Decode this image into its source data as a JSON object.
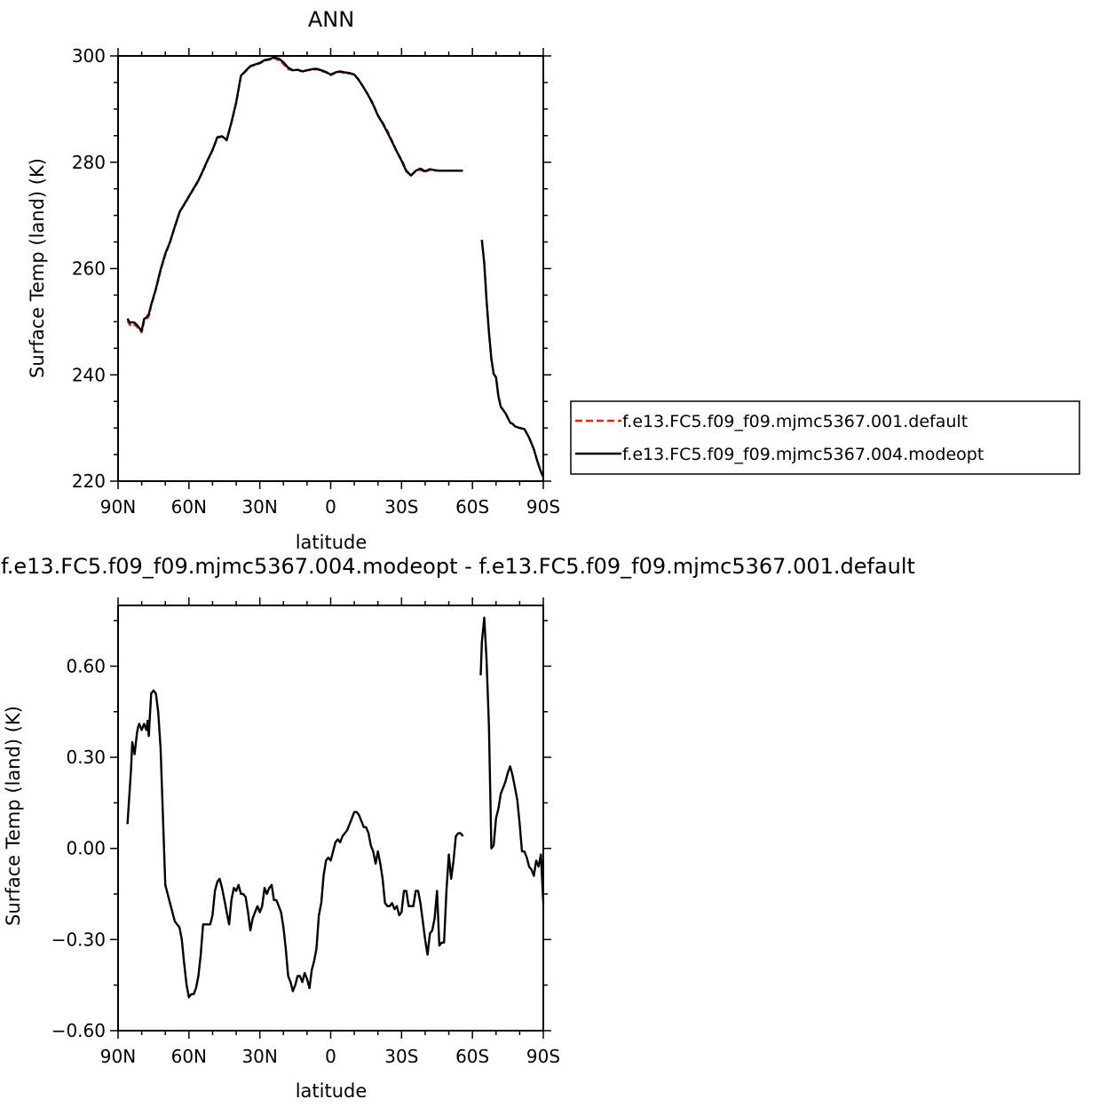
{
  "chart_data": [
    {
      "type": "line",
      "title": "ANN",
      "xlabel": "latitude",
      "ylabel": "Surface Temp (land) (K)",
      "xlim": [
        90,
        -90
      ],
      "ylim": [
        220,
        300
      ],
      "x_ticks": [
        90,
        60,
        30,
        0,
        -30,
        -60,
        -90
      ],
      "x_tick_labels": [
        "90N",
        "60N",
        "30N",
        "0",
        "30S",
        "60S",
        "90S"
      ],
      "y_ticks": [
        220,
        240,
        260,
        280,
        300
      ],
      "y_tick_labels": [
        "220",
        "240",
        "260",
        "280",
        "300"
      ],
      "grid": false,
      "legend": {
        "placement": "right",
        "entries": [
          {
            "name": "f.e13.FC5.f09_f09.mjmc5367.001.default",
            "color": "#e8221c",
            "dash": "dashed"
          },
          {
            "name": "f.e13.FC5.f09_f09.mjmc5367.004.modeopt",
            "color": "#000000",
            "dash": "solid"
          }
        ]
      },
      "series": [
        {
          "name": "f.e13.FC5.f09_f09.mjmc5367.001.default",
          "color": "#e8221c",
          "dash": "dashed",
          "segments": [
            {
              "x": [
                86,
                85,
                84,
                83,
                82,
                81,
                80,
                79,
                78,
                77,
                76,
                74,
                72,
                70,
                68,
                66,
                64,
                62,
                60,
                58,
                56,
                54,
                52,
                50,
                48,
                46,
                44,
                42,
                40,
                38,
                36,
                34,
                32,
                30,
                28,
                26,
                24,
                22,
                20,
                18,
                16,
                14,
                12,
                10,
                8,
                6,
                4,
                2,
                0,
                -2,
                -4,
                -6,
                -8,
                -10,
                -12,
                -14,
                -16,
                -18,
                -20,
                -22,
                -24,
                -26,
                -28,
                -30,
                -32,
                -34,
                -36,
                -38,
                -40,
                -42,
                -44,
                -46,
                -48,
                -50,
                -52,
                -54,
                -56
              ],
              "y": [
                250.2,
                249.4,
                249.2,
                249.4,
                249.1,
                248.5,
                248.0,
                250.1,
                250.4,
                251.0,
                253.0,
                256.0,
                259.6,
                262.6,
                264.9,
                267.8,
                270.5,
                272.0,
                273.5,
                275.0,
                276.5,
                278.4,
                280.4,
                282.2,
                284.6,
                284.8,
                284.1,
                287.4,
                291.2,
                296.2,
                297.1,
                298.0,
                298.3,
                298.6,
                299.1,
                299.3,
                299.6,
                299.2,
                298.5,
                297.5,
                297.3,
                297.4,
                297.1,
                297.3,
                297.4,
                297.5,
                297.2,
                296.9,
                296.4,
                296.8,
                297.0,
                296.8,
                296.7,
                296.5,
                295.5,
                294.0,
                292.6,
                291.0,
                288.8,
                287.5,
                285.9,
                284.0,
                282.0,
                280.5,
                278.5,
                277.5,
                278.3,
                278.6,
                278.1,
                278.6,
                278.4,
                278.4,
                278.4,
                278.4,
                278.4,
                278.4,
                278.4
              ]
            },
            {
              "x": [
                -64,
                -65,
                -66,
                -67,
                -68,
                -69,
                -70,
                -71,
                -72,
                -74,
                -76,
                -77,
                -78,
                -80,
                -82,
                -84,
                -86,
                -87,
                -88,
                -89,
                -90
              ],
              "y": [
                265.4,
                261.0,
                254.0,
                248.0,
                243.0,
                240.2,
                239.5,
                236.0,
                234.0,
                232.8,
                231.0,
                230.8,
                230.3,
                230.0,
                229.8,
                228.2,
                226.0,
                224.5,
                223.0,
                221.8,
                220.8
              ]
            }
          ]
        },
        {
          "name": "f.e13.FC5.f09_f09.mjmc5367.004.modeopt",
          "color": "#000000",
          "dash": "solid",
          "segments": [
            {
              "x": [
                86,
                85,
                84,
                83,
                82,
                81,
                80,
                79,
                78,
                77,
                76,
                74,
                72,
                70,
                68,
                66,
                64,
                62,
                60,
                58,
                56,
                54,
                52,
                50,
                48,
                46,
                44,
                42,
                40,
                38,
                36,
                34,
                32,
                30,
                28,
                26,
                24,
                22,
                20,
                18,
                16,
                14,
                12,
                10,
                8,
                6,
                4,
                2,
                0,
                -2,
                -4,
                -6,
                -8,
                -10,
                -12,
                -14,
                -16,
                -18,
                -20,
                -22,
                -24,
                -26,
                -28,
                -30,
                -32,
                -34,
                -36,
                -38,
                -40,
                -42,
                -44,
                -46,
                -48,
                -50,
                -52,
                -54,
                -56
              ],
              "y": [
                250.6,
                249.8,
                249.9,
                249.8,
                249.4,
                248.8,
                248.3,
                250.5,
                250.8,
                251.4,
                253.2,
                256.2,
                259.8,
                262.8,
                265.0,
                267.9,
                270.6,
                272.1,
                273.6,
                275.1,
                276.6,
                278.5,
                280.5,
                282.3,
                284.7,
                284.9,
                284.2,
                287.5,
                291.3,
                296.3,
                297.2,
                298.1,
                298.4,
                298.7,
                299.2,
                299.4,
                299.7,
                299.5,
                298.8,
                297.8,
                297.3,
                297.4,
                297.1,
                297.3,
                297.5,
                297.6,
                297.3,
                297.0,
                296.5,
                296.9,
                297.1,
                296.9,
                296.8,
                296.5,
                295.4,
                294.0,
                292.5,
                290.8,
                288.8,
                287.3,
                285.6,
                283.8,
                282.0,
                280.3,
                278.3,
                277.5,
                278.4,
                278.8,
                278.3,
                278.7,
                278.5,
                278.4,
                278.4,
                278.4,
                278.4,
                278.4,
                278.4
              ]
            },
            {
              "x": [
                -64,
                -65,
                -66,
                -67,
                -68,
                -69,
                -70,
                -71,
                -72,
                -74,
                -76,
                -77,
                -78,
                -80,
                -82,
                -84,
                -86,
                -87,
                -88,
                -89,
                -90
              ],
              "y": [
                265.4,
                261.0,
                254.0,
                248.0,
                243.0,
                240.2,
                239.5,
                236.0,
                234.0,
                232.8,
                231.0,
                230.8,
                230.3,
                230.0,
                229.8,
                228.2,
                226.0,
                224.5,
                223.0,
                221.8,
                220.8
              ]
            }
          ]
        }
      ]
    },
    {
      "type": "line",
      "title": "f.e13.FC5.f09_f09.mjmc5367.004.modeopt - f.e13.FC5.f09_f09.mjmc5367.001.default",
      "xlabel": "latitude",
      "ylabel": "Surface Temp (land) (K)",
      "xlim": [
        90,
        -90
      ],
      "ylim": [
        -0.6,
        0.8
      ],
      "x_ticks": [
        90,
        60,
        30,
        0,
        -30,
        -60,
        -90
      ],
      "x_tick_labels": [
        "90N",
        "60N",
        "30N",
        "0",
        "30S",
        "60S",
        "90S"
      ],
      "y_ticks": [
        -0.6,
        -0.3,
        0.0,
        0.3,
        0.6
      ],
      "y_tick_labels": [
        "−0.60",
        "−0.30",
        "0.00",
        "0.30",
        "0.60"
      ],
      "grid": false,
      "series": [
        {
          "name": "",
          "color": "#000000",
          "dash": "solid",
          "segments": [
            {
              "x": [
                86,
                84.5,
                84,
                83,
                82,
                81.5,
                81,
                80,
                79,
                78,
                77.5,
                77,
                76,
                75,
                74,
                73,
                72,
                70,
                68,
                67,
                66,
                65,
                64,
                63,
                62,
                61,
                60,
                59,
                58,
                57,
                56,
                55,
                54,
                52,
                51,
                50,
                49,
                48,
                47,
                46,
                45,
                44,
                43,
                42,
                41,
                40,
                39,
                38,
                37,
                36,
                35,
                34,
                33,
                32,
                31,
                30,
                29,
                28,
                27,
                26,
                25,
                24,
                23,
                22,
                21,
                20,
                19,
                18,
                17,
                16,
                15,
                14,
                13,
                12,
                11,
                10,
                9,
                8,
                7,
                6,
                5,
                4,
                3,
                2,
                1,
                0,
                -1,
                -2,
                -3,
                -4,
                -5,
                -6,
                -7,
                -8,
                -9,
                -10,
                -11,
                -12,
                -13,
                -14,
                -15,
                -16,
                -17,
                -18,
                -19,
                -20,
                -21,
                -22,
                -23,
                -24,
                -25,
                -26,
                -27,
                -28,
                -29,
                -30,
                -31,
                -32,
                -33,
                -34,
                -35,
                -36,
                -37,
                -38,
                -39,
                -40,
                -41,
                -42,
                -43,
                -44,
                -45,
                -46,
                -47,
                -48,
                -49,
                -50,
                -51,
                -52,
                -53,
                -54,
                -55,
                -56
              ],
              "y": [
                0.08,
                0.26,
                0.35,
                0.31,
                0.38,
                0.4,
                0.41,
                0.39,
                0.41,
                0.39,
                0.42,
                0.37,
                0.51,
                0.52,
                0.51,
                0.45,
                0.33,
                -0.12,
                -0.18,
                -0.21,
                -0.24,
                -0.25,
                -0.26,
                -0.3,
                -0.38,
                -0.45,
                -0.49,
                -0.48,
                -0.48,
                -0.46,
                -0.42,
                -0.35,
                -0.25,
                -0.25,
                -0.25,
                -0.22,
                -0.14,
                -0.11,
                -0.1,
                -0.13,
                -0.17,
                -0.21,
                -0.25,
                -0.17,
                -0.13,
                -0.14,
                -0.12,
                -0.15,
                -0.15,
                -0.16,
                -0.21,
                -0.27,
                -0.23,
                -0.21,
                -0.19,
                -0.21,
                -0.19,
                -0.13,
                -0.15,
                -0.13,
                -0.12,
                -0.17,
                -0.17,
                -0.19,
                -0.21,
                -0.26,
                -0.33,
                -0.42,
                -0.44,
                -0.47,
                -0.45,
                -0.42,
                -0.42,
                -0.44,
                -0.41,
                -0.43,
                -0.46,
                -0.4,
                -0.37,
                -0.33,
                -0.22,
                -0.18,
                -0.09,
                -0.04,
                -0.03,
                -0.04,
                -0.01,
                0.02,
                0.03,
                0.02,
                0.04,
                0.05,
                0.06,
                0.08,
                0.1,
                0.12,
                0.12,
                0.11,
                0.09,
                0.07,
                0.07,
                0.05,
                0.01,
                -0.01,
                -0.05,
                -0.01,
                -0.05,
                -0.1,
                -0.18,
                -0.19,
                -0.19,
                -0.18,
                -0.2,
                -0.19,
                -0.22,
                -0.21,
                -0.14,
                -0.14,
                -0.19,
                -0.19,
                -0.19,
                -0.14,
                -0.14,
                -0.18,
                -0.24,
                -0.3,
                -0.35,
                -0.28,
                -0.27,
                -0.23,
                -0.14,
                -0.32,
                -0.31,
                -0.31,
                -0.14,
                -0.02,
                -0.1,
                -0.04,
                0.04,
                0.05,
                0.05,
                0.04
              ]
            },
            {
              "x": [
                -63.5,
                -64,
                -65,
                -66,
                -67,
                -68,
                -69,
                -70,
                -71,
                -72,
                -73,
                -74,
                -75,
                -76,
                -77,
                -78,
                -79,
                -80,
                -81,
                -82,
                -83,
                -84,
                -85,
                -86,
                -87,
                -88,
                -89,
                -90
              ],
              "y": [
                0.57,
                0.68,
                0.76,
                0.62,
                0.4,
                0.0,
                0.01,
                0.1,
                0.13,
                0.18,
                0.2,
                0.22,
                0.25,
                0.27,
                0.24,
                0.2,
                0.16,
                0.08,
                -0.01,
                -0.01,
                -0.03,
                -0.06,
                -0.07,
                -0.09,
                -0.04,
                -0.06,
                -0.02,
                -0.18
              ]
            }
          ]
        }
      ]
    }
  ]
}
